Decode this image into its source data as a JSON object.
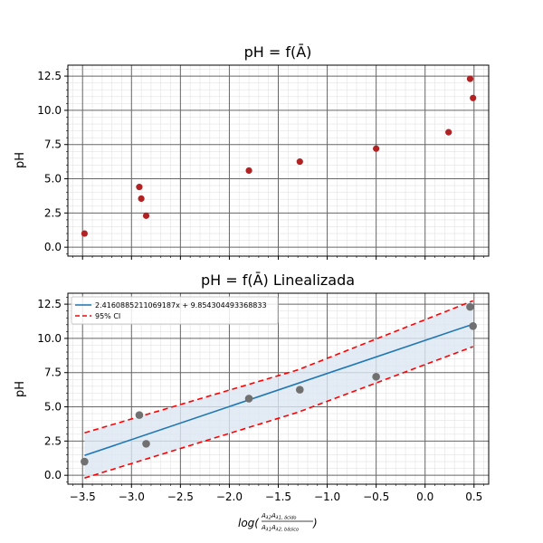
{
  "chart_data": [
    {
      "type": "scatter",
      "title": "pH = f(Ā)",
      "ylabel": "pH",
      "xlabel": "",
      "xlim": [
        -3.65,
        0.65
      ],
      "ylim": [
        -0.65,
        13.3
      ],
      "xticks": [
        -3.5,
        -3.0,
        -2.5,
        -2.0,
        -1.5,
        -1.0,
        -0.5,
        0.0,
        0.5
      ],
      "yticks": [
        0.0,
        2.5,
        5.0,
        7.5,
        10.0,
        12.5
      ],
      "ytick_labels": [
        "0.0",
        "2.5",
        "5.0",
        "7.5",
        "10.0",
        "12.5"
      ],
      "grid": true,
      "minor_grid": true,
      "series": [
        {
          "color": "#b22222",
          "points": [
            {
              "x": -3.48,
              "y": 1.0
            },
            {
              "x": -2.92,
              "y": 4.4
            },
            {
              "x": -2.9,
              "y": 3.55
            },
            {
              "x": -2.85,
              "y": 2.3
            },
            {
              "x": -1.8,
              "y": 5.6
            },
            {
              "x": -1.28,
              "y": 6.25
            },
            {
              "x": -0.5,
              "y": 7.2
            },
            {
              "x": 0.24,
              "y": 8.4
            },
            {
              "x": 0.46,
              "y": 12.3
            },
            {
              "x": 0.49,
              "y": 10.9
            }
          ]
        }
      ]
    },
    {
      "type": "scatter",
      "title": "pH = f(Ā) Linealizada",
      "ylabel": "pH",
      "xlabel": "log(Aλ2Aλ1, ácido / Aλ1Aλ2, básico)",
      "xlim": [
        -3.65,
        0.65
      ],
      "ylim": [
        -0.65,
        13.3
      ],
      "xticks": [
        -3.5,
        -3.0,
        -2.5,
        -2.0,
        -1.5,
        -1.0,
        -0.5,
        0.0,
        0.5
      ],
      "xtick_labels": [
        "−3.5",
        "−3.0",
        "−2.5",
        "−2.0",
        "−1.5",
        "−1.0",
        "−0.5",
        "0.0",
        "0.5"
      ],
      "yticks": [
        0.0,
        2.5,
        5.0,
        7.5,
        10.0,
        12.5
      ],
      "ytick_labels": [
        "0.0",
        "2.5",
        "5.0",
        "7.5",
        "10.0",
        "12.5"
      ],
      "grid": true,
      "minor_grid": true,
      "legend_position": "upper-left",
      "legend": [
        {
          "label": "2.4160885211069187x + 9.854304493368833",
          "color": "#1f77b4",
          "style": "solid"
        },
        {
          "label": "95% CI",
          "color": "#ff0000",
          "style": "dashed"
        }
      ],
      "fit": {
        "slope": 2.4160885211069187,
        "intercept": 9.854304493368833,
        "x_range": [
          -3.48,
          0.49
        ],
        "color": "#1f77b4"
      },
      "ci": {
        "color": "#ff0000",
        "band_fill": "#dce6f2",
        "upper": [
          {
            "x": -3.48,
            "y": 3.1
          },
          {
            "x": -1.3,
            "y": 7.7
          },
          {
            "x": 0.49,
            "y": 12.75
          }
        ],
        "lower": [
          {
            "x": -3.48,
            "y": -0.2
          },
          {
            "x": -1.3,
            "y": 4.6
          },
          {
            "x": 0.49,
            "y": 9.4
          }
        ]
      },
      "series": [
        {
          "color": "#707070",
          "points": [
            {
              "x": -3.48,
              "y": 1.0
            },
            {
              "x": -2.92,
              "y": 4.4
            },
            {
              "x": -2.85,
              "y": 2.3
            },
            {
              "x": -1.8,
              "y": 5.6
            },
            {
              "x": -1.28,
              "y": 6.25
            },
            {
              "x": -0.5,
              "y": 7.2
            },
            {
              "x": 0.46,
              "y": 12.3
            },
            {
              "x": 0.49,
              "y": 10.9
            }
          ]
        }
      ]
    }
  ]
}
